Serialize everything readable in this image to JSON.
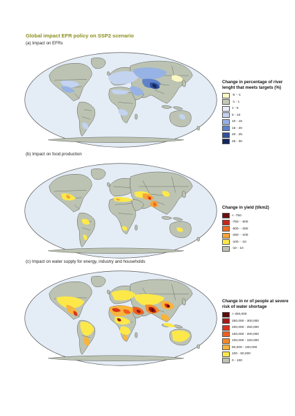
{
  "title": "Global impact EFR policy on SSP2 scenario",
  "colors": {
    "ocean": "#e4ecf6",
    "land": "#bcc3b2",
    "border": "#4a4a4a",
    "title": "#8a8f1c"
  },
  "panels": [
    {
      "label": "(a) Impact on EFRs",
      "legend_title": "Change in percentage of river lenght that meets targets (%)",
      "legend": [
        {
          "label": "-5 - -1",
          "color": "#fbf7c2"
        },
        {
          "label": "-1 - 1",
          "color": "#c4c9b9"
        },
        {
          "label": "1 - 5",
          "color": "#e9eef8"
        },
        {
          "label": "5 - 10",
          "color": "#c3d3f0"
        },
        {
          "label": "10 - 15",
          "color": "#97b2e4"
        },
        {
          "label": "15 - 20",
          "color": "#5f82c9"
        },
        {
          "label": "20 - 25",
          "color": "#2f509c"
        },
        {
          "label": "25 - 30",
          "color": "#12275c"
        }
      ]
    },
    {
      "label": "(b) Impact on food production",
      "legend_title": "Change in yield (t/km2)",
      "legend": [
        {
          "label": "< -750",
          "color": "#6b0f0f"
        },
        {
          "label": "-750 - -500",
          "color": "#c4261b"
        },
        {
          "label": "-500 - -250",
          "color": "#ef6a1f"
        },
        {
          "label": "-250 - -100",
          "color": "#f7a43a"
        },
        {
          "label": "-100 - -10",
          "color": "#fde948"
        },
        {
          "label": "-10 - 10",
          "color": "#bcc3b2"
        }
      ]
    },
    {
      "label": "(c) Impact on water supply for energy, industry and households",
      "legend_title": "Change in nr of people at severe risk of water shortage",
      "legend": [
        {
          "label": "> 300,000",
          "color": "#5c0b0b"
        },
        {
          "label": "250,000 - 300,000",
          "color": "#a31a16"
        },
        {
          "label": "200,000 - 250,000",
          "color": "#d7341c"
        },
        {
          "label": "150,000 - 200,000",
          "color": "#ef5f1f"
        },
        {
          "label": "100,000 - 150,000",
          "color": "#f5892a"
        },
        {
          "label": "50,000 - 100,000",
          "color": "#f8b43b"
        },
        {
          "label": "100 - 50,000",
          "color": "#fde84a"
        },
        {
          "label": "0 - 100",
          "color": "#bcc3b2"
        }
      ]
    }
  ]
}
